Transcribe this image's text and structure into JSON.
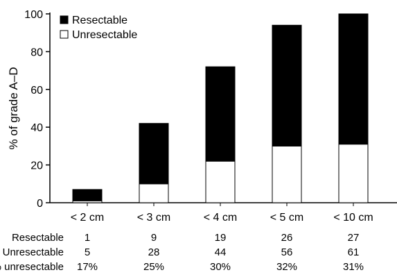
{
  "chart_data": {
    "type": "bar",
    "stacked": true,
    "categories": [
      "< 2 cm",
      "< 3 cm",
      "< 4 cm",
      "< 5 cm",
      "< 10 cm"
    ],
    "series": [
      {
        "name": "Unresectable",
        "color": "#ffffff",
        "values": [
          1,
          10,
          22,
          30,
          31
        ]
      },
      {
        "name": "Resectable",
        "color": "#000000",
        "values": [
          6,
          32,
          50,
          64,
          69
        ]
      }
    ],
    "title": "",
    "xlabel": "",
    "ylabel": "% of grade A–D",
    "ylim": [
      0,
      100
    ],
    "yticks": [
      0,
      20,
      40,
      60,
      80,
      100
    ],
    "grid": false,
    "legend_placement": "top-left"
  },
  "table": {
    "rows": [
      {
        "label": "Resectable",
        "values": [
          "1",
          "9",
          "19",
          "26",
          "27"
        ]
      },
      {
        "label": "Unresectable",
        "values": [
          "5",
          "28",
          "44",
          "56",
          "61"
        ]
      },
      {
        "label": "% unresectable",
        "values": [
          "17%",
          "25%",
          "30%",
          "32%",
          "31%"
        ]
      }
    ]
  }
}
